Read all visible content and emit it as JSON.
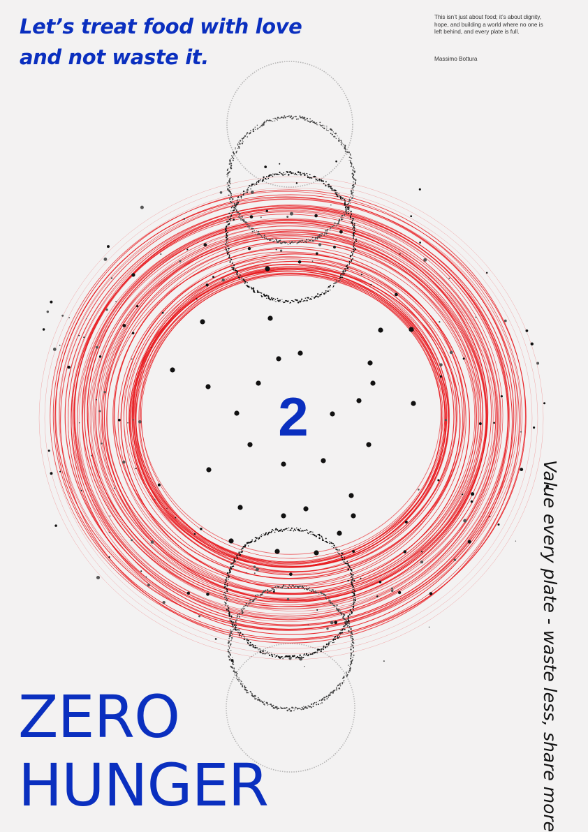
{
  "headline": {
    "line1": "Let’s treat food with love",
    "line2": "and not waste it."
  },
  "quote": {
    "lines": [
      "This isn’t just about food; it’s about dignity,",
      "hope, and building a world where no one is",
      "left behind, and every plate is full."
    ],
    "author": "Massimo Bottura"
  },
  "goal_number": "2",
  "title": {
    "line1": "ZERO",
    "line2": "HUNGER"
  },
  "tagline": "Value every  plate - waste less, share more",
  "colors": {
    "background": "#f3f2f2",
    "brand_blue": "#0a2fbf",
    "ring_red": "#e8161b",
    "dot_black": "#111111"
  }
}
